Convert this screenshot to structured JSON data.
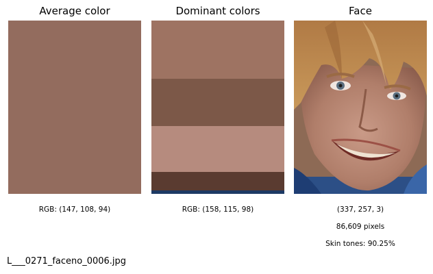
{
  "panels": {
    "average": {
      "title": "Average color",
      "swatch_color": "#936c5e",
      "caption": "RGB: (147, 108, 94)"
    },
    "dominant": {
      "title": "Dominant colors",
      "stripes": [
        {
          "color": "#9e7362",
          "fraction": 0.336
        },
        {
          "color": "#7c5848",
          "fraction": 0.273
        },
        {
          "color": "#b68b7e",
          "fraction": 0.265
        },
        {
          "color": "#5a3b30",
          "fraction": 0.107
        },
        {
          "color": "#1d3a64",
          "fraction": 0.019
        }
      ],
      "caption": "RGB: (158, 115, 98)"
    },
    "face": {
      "title": "Face",
      "captions": [
        "(337, 257, 3)",
        "86,609 pixels",
        "Skin tones: 90.25%"
      ]
    }
  },
  "filename": "L___0271_faceno_0006.jpg"
}
